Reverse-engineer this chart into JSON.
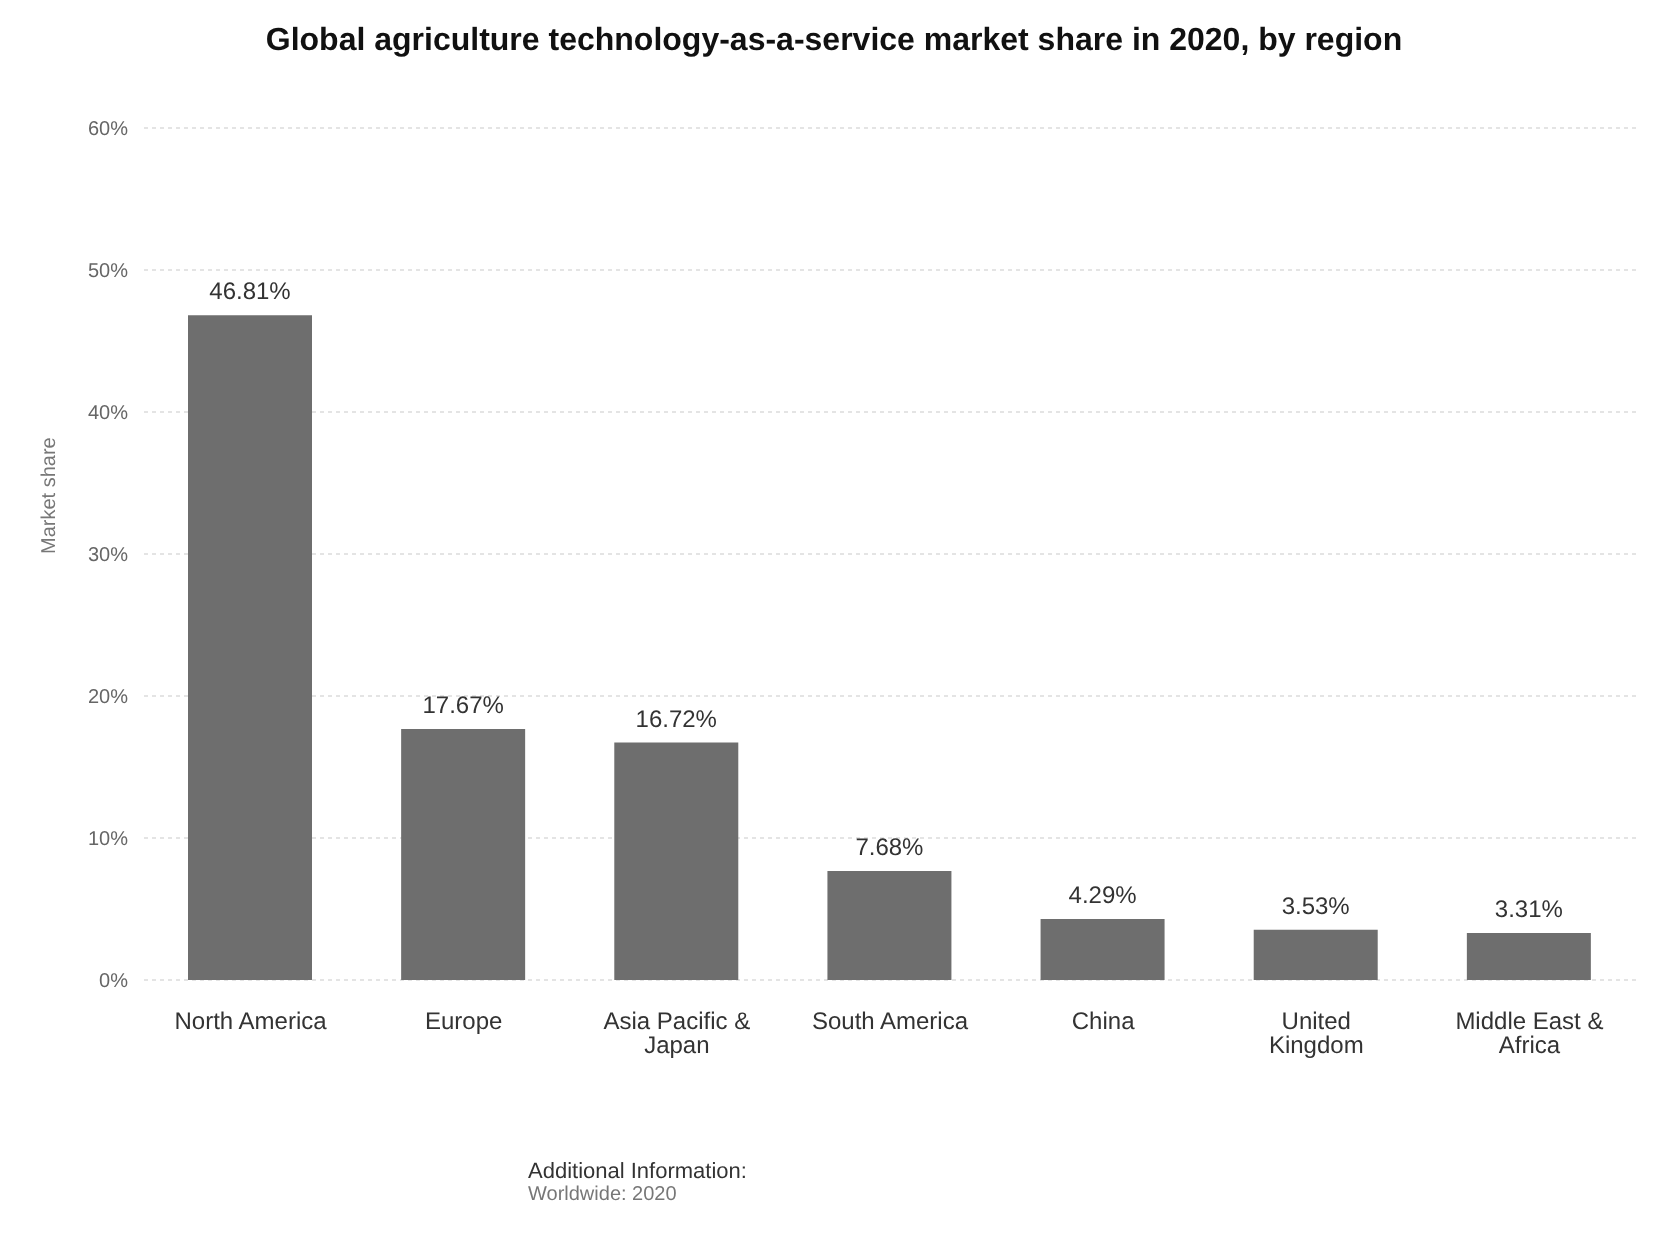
{
  "chart_data": {
    "type": "bar",
    "title": "Global agriculture technology-as-a-service market share in 2020, by region",
    "ylabel": "Market share",
    "categories": [
      "North America",
      "Europe",
      "Asia Pacific & Japan",
      "South America",
      "China",
      "United Kingdom",
      "Middle East & Africa"
    ],
    "values": [
      46.81,
      17.67,
      16.72,
      7.68,
      4.29,
      3.53,
      3.31
    ],
    "value_labels": [
      "46.81%",
      "17.67%",
      "16.72%",
      "7.68%",
      "4.29%",
      "3.53%",
      "3.31%"
    ],
    "color": "#6e6e6e",
    "ylim": [
      0,
      60
    ],
    "yticks": [
      {
        "value": 0,
        "label": "0%"
      },
      {
        "value": 10,
        "label": "10%"
      },
      {
        "value": 20,
        "label": "20%"
      },
      {
        "value": 30,
        "label": "30%"
      },
      {
        "value": 40,
        "label": "40%"
      },
      {
        "value": 50,
        "label": "50%"
      },
      {
        "value": 60,
        "label": "60%"
      }
    ],
    "grid": "y",
    "annotations": [
      "Additional Information:",
      "Worldwide: 2020"
    ]
  }
}
